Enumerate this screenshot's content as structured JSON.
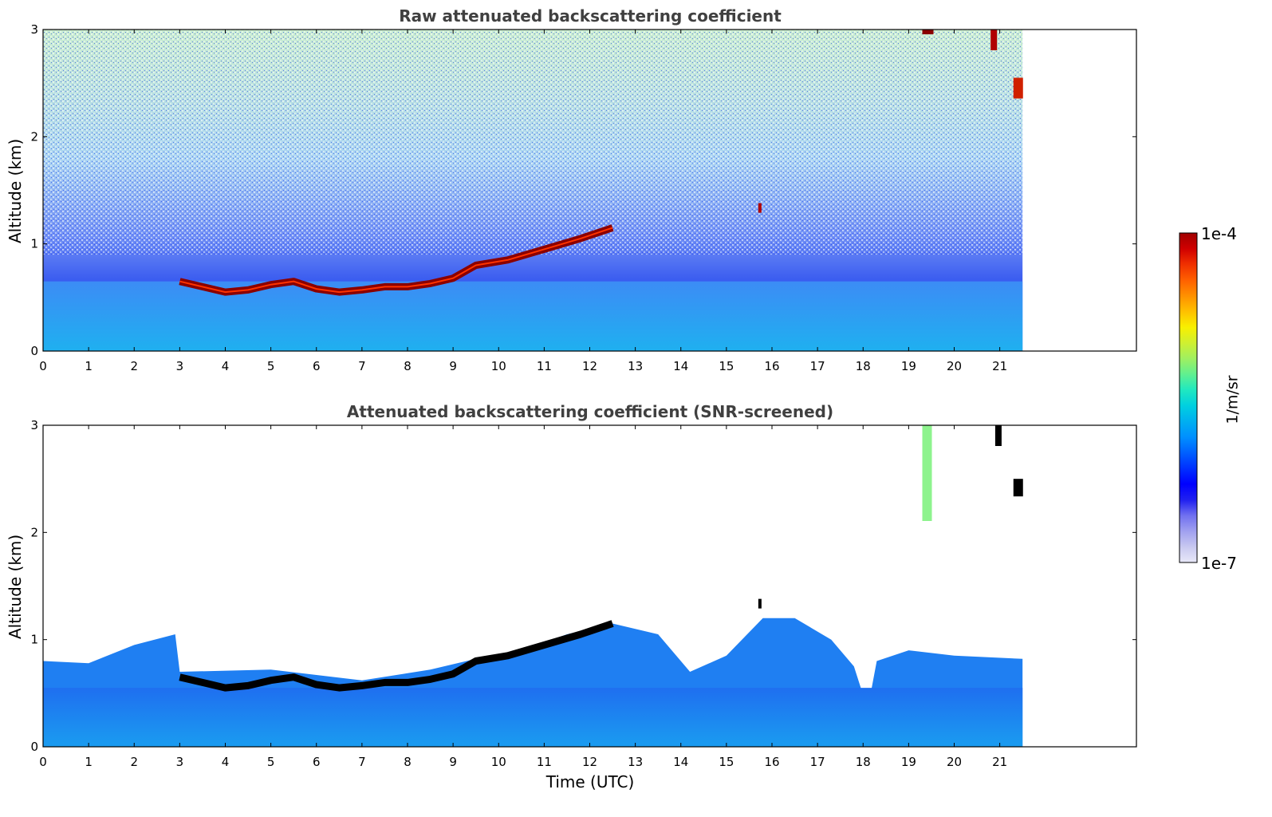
{
  "chart_data": [
    {
      "type": "heatmap",
      "title": "Raw attenuated backscattering coefficient",
      "xlabel": "",
      "ylabel": "Altitude (km)",
      "xlim": [
        0,
        24
      ],
      "ylim": [
        0,
        3
      ],
      "x_ticks": [
        "0",
        "1",
        "2",
        "3",
        "4",
        "5",
        "6",
        "7",
        "8",
        "9",
        "10",
        "11",
        "12",
        "13",
        "14",
        "15",
        "16",
        "17",
        "18",
        "19",
        "20",
        "21"
      ],
      "y_ticks": [
        "0",
        "1",
        "2",
        "3"
      ],
      "data_end_time": 21.5,
      "cloud_layer": [
        [
          3.0,
          0.65
        ],
        [
          3.5,
          0.6
        ],
        [
          4.0,
          0.55
        ],
        [
          4.5,
          0.57
        ],
        [
          5.0,
          0.62
        ],
        [
          5.5,
          0.65
        ],
        [
          6.0,
          0.58
        ],
        [
          6.5,
          0.55
        ],
        [
          7.0,
          0.57
        ],
        [
          7.5,
          0.6
        ],
        [
          8.0,
          0.6
        ],
        [
          8.5,
          0.63
        ],
        [
          9.0,
          0.68
        ],
        [
          9.5,
          0.8
        ],
        [
          10.2,
          0.85
        ],
        [
          11.0,
          0.95
        ],
        [
          11.8,
          1.05
        ],
        [
          12.5,
          1.15
        ]
      ],
      "grid": false
    },
    {
      "type": "heatmap",
      "title": "Attenuated backscattering coefficient (SNR-screened)",
      "xlabel": "Time (UTC)",
      "ylabel": "Altitude (km)",
      "xlim": [
        0,
        24
      ],
      "ylim": [
        0,
        3
      ],
      "x_ticks": [
        "0",
        "1",
        "2",
        "3",
        "4",
        "5",
        "6",
        "7",
        "8",
        "9",
        "10",
        "11",
        "12",
        "13",
        "14",
        "15",
        "16",
        "17",
        "18",
        "19",
        "20",
        "21"
      ],
      "y_ticks": [
        "0",
        "1",
        "2",
        "3"
      ],
      "data_end_time": 21.5,
      "grid": false
    }
  ],
  "colorbar": {
    "max_label": "1e-4",
    "min_label": "1e-7",
    "label": "1/m/sr",
    "colors": [
      "#e8e8f8",
      "#c8c8f0",
      "#a0a0f0",
      "#7070f0",
      "#2020f0",
      "#0000ff",
      "#0030ff",
      "#0060ff",
      "#0090ff",
      "#00b0f0",
      "#00d0e0",
      "#20e8c0",
      "#60f090",
      "#a0f060",
      "#d0f030",
      "#f8f000",
      "#ffc000",
      "#ff9000",
      "#ff6000",
      "#f03000",
      "#d00000",
      "#a00000"
    ]
  }
}
